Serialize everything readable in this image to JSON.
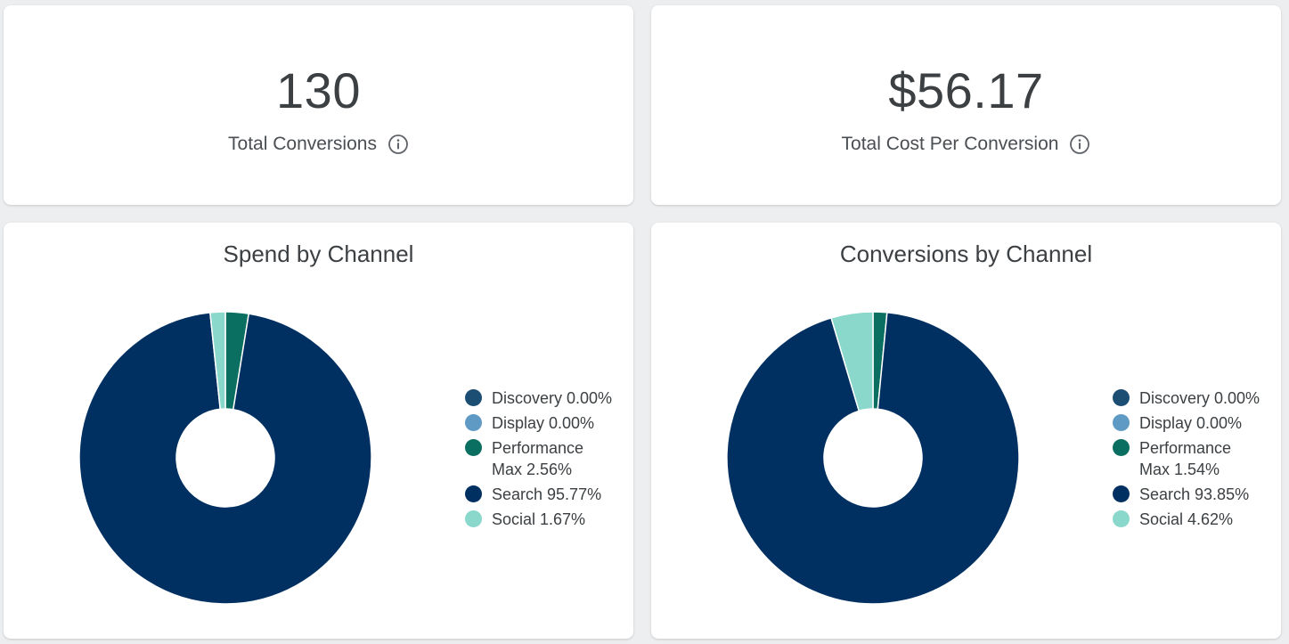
{
  "kpis": {
    "total_conversions": {
      "value": "130",
      "label": "Total Conversions",
      "icon": "info-icon"
    },
    "total_cost_per_conversion": {
      "value": "$56.17",
      "label": "Total Cost Per Conversion",
      "icon": "info-icon"
    }
  },
  "chart_data": [
    {
      "type": "pie",
      "title": "Spend by Channel",
      "donut": true,
      "legend_position": "right",
      "series": [
        {
          "name": "Discovery",
          "value": 0.0,
          "color": "#1c4e74",
          "legend": "Discovery 0.00%"
        },
        {
          "name": "Display",
          "value": 0.0,
          "color": "#5f9ac4",
          "legend": "Display 0.00%"
        },
        {
          "name": "Performance Max",
          "value": 2.56,
          "color": "#0a6e60",
          "legend_line1": "Performance",
          "legend_line2": "Max 2.56%"
        },
        {
          "name": "Search",
          "value": 95.77,
          "color": "#003061",
          "legend": "Search 95.77%"
        },
        {
          "name": "Social",
          "value": 1.67,
          "color": "#8ad7cc",
          "legend": "Social 1.67%"
        }
      ]
    },
    {
      "type": "pie",
      "title": "Conversions by Channel",
      "donut": true,
      "legend_position": "right",
      "series": [
        {
          "name": "Discovery",
          "value": 0.0,
          "color": "#1c4e74",
          "legend": "Discovery 0.00%"
        },
        {
          "name": "Display",
          "value": 0.0,
          "color": "#5f9ac4",
          "legend": "Display 0.00%"
        },
        {
          "name": "Performance Max",
          "value": 1.54,
          "color": "#0a6e60",
          "legend_line1": "Performance",
          "legend_line2": "Max 1.54%"
        },
        {
          "name": "Search",
          "value": 93.85,
          "color": "#003061",
          "legend": "Search 93.85%"
        },
        {
          "name": "Social",
          "value": 4.62,
          "color": "#8ad7cc",
          "legend": "Social 4.62%"
        }
      ]
    }
  ]
}
